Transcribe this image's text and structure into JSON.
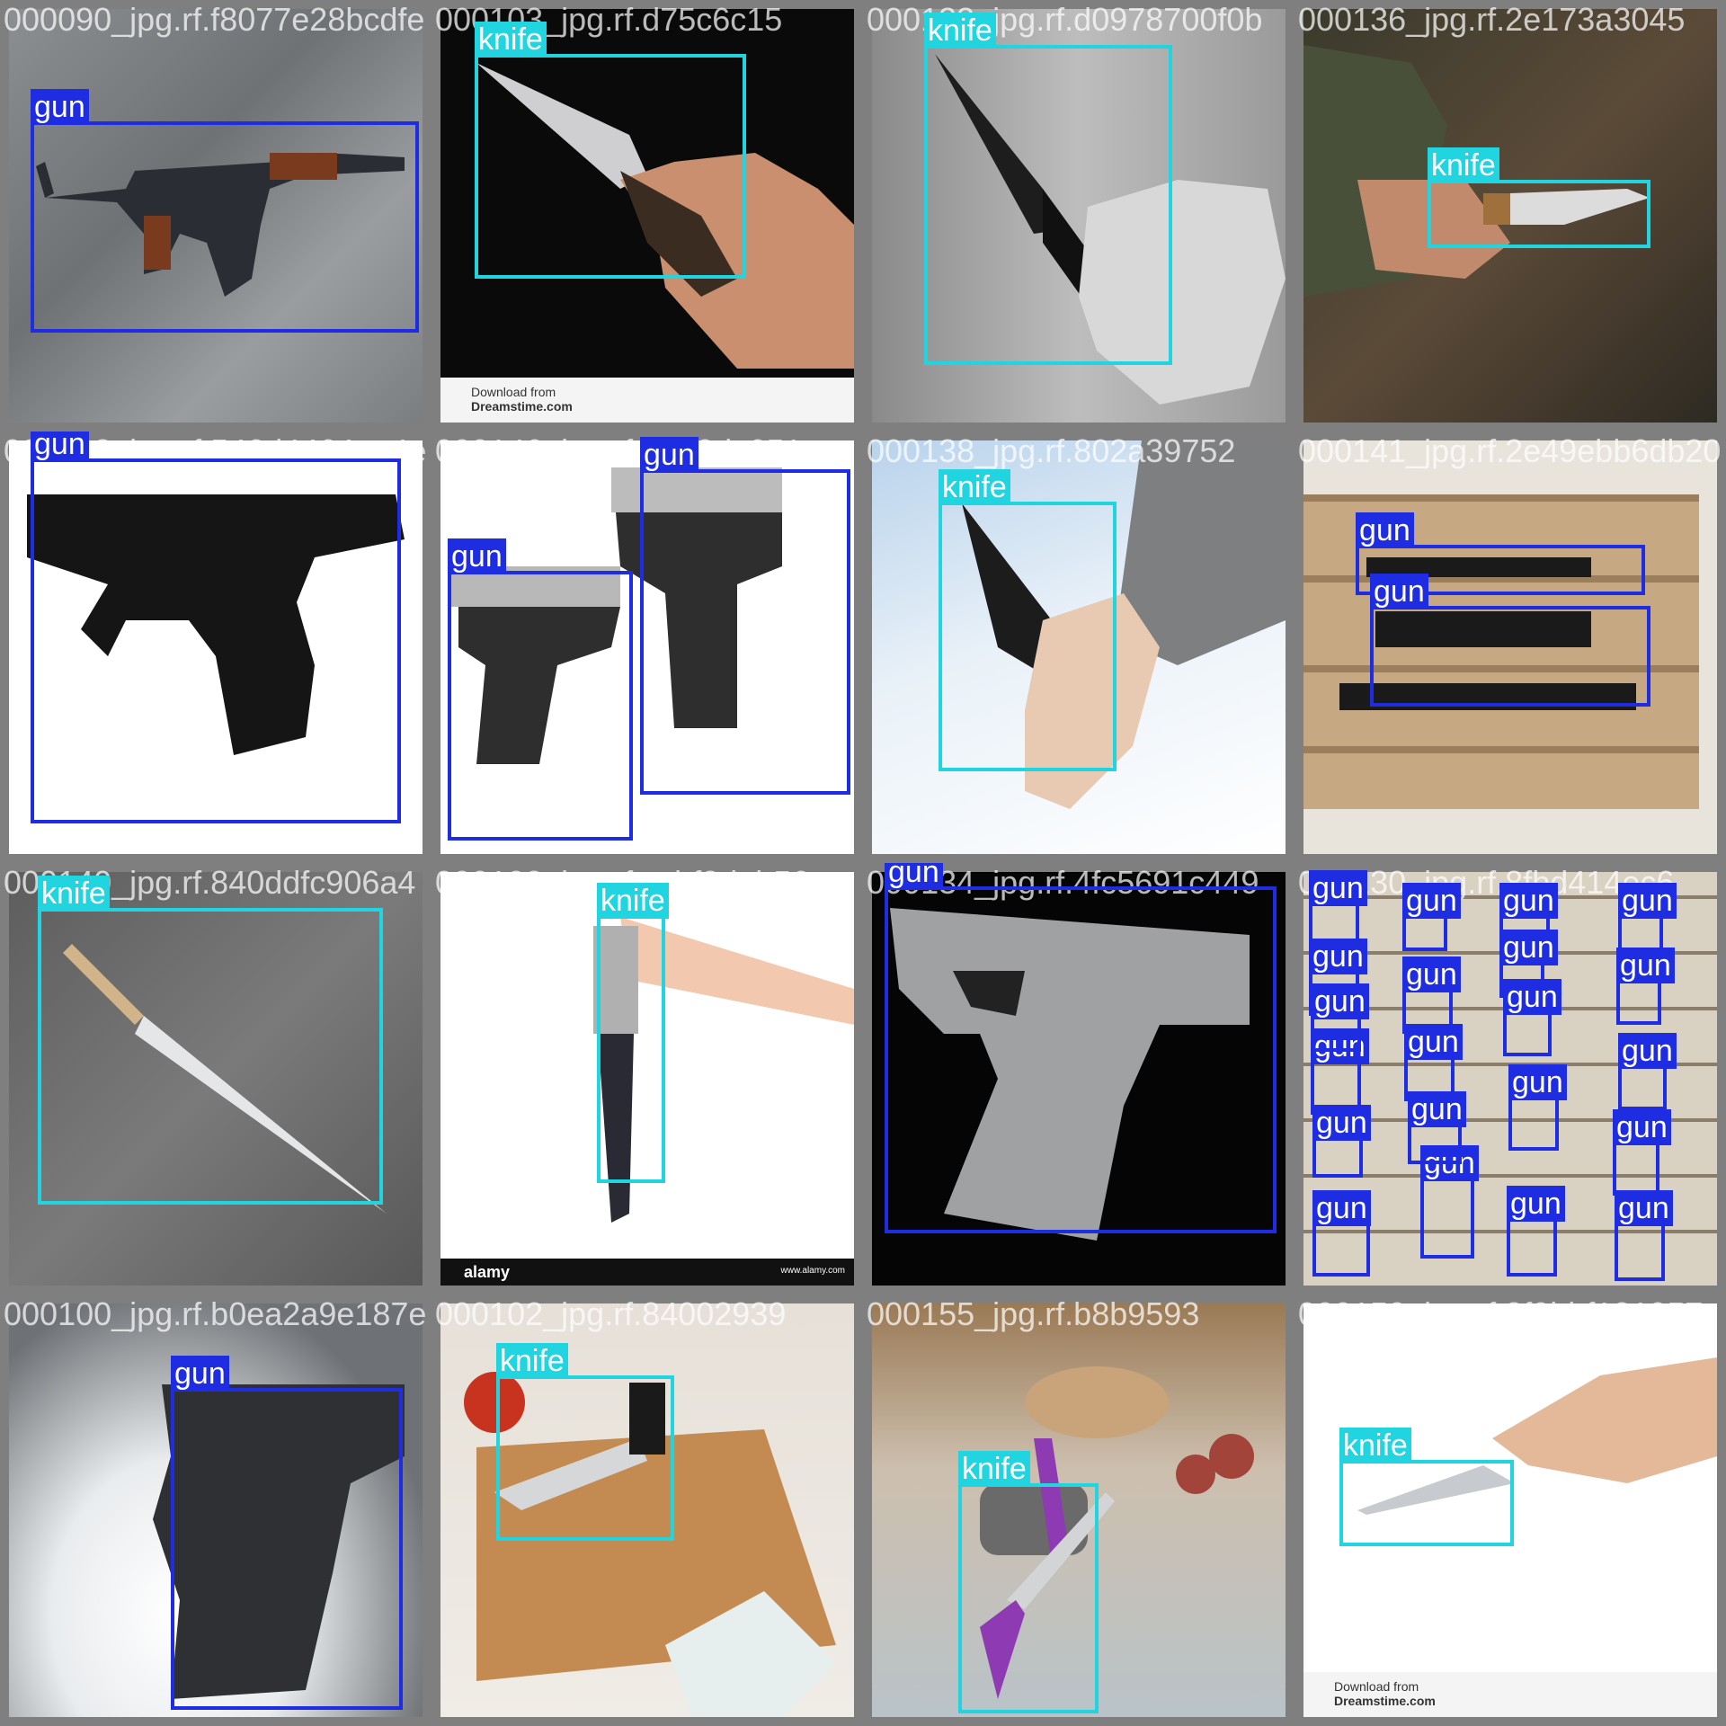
{
  "colors": {
    "gun": "#1f2de2",
    "knife": "#20d4e0",
    "grid_bg": "#7f7f7f"
  },
  "tiles": [
    {
      "filename": "000090_jpg.rf.f8077e28bcdfe",
      "labels": [
        "gun"
      ]
    },
    {
      "filename": "000103_jpg.rf.d75c6c15",
      "labels": [
        "knife"
      ]
    },
    {
      "filename": "000133_jpg.rf.d0978700f0b",
      "labels": [
        "knife"
      ]
    },
    {
      "filename": "000136_jpg.rf.2e173a3045",
      "labels": [
        "knife"
      ]
    },
    {
      "filename": "000092_jpg.rf.546d4464aa4e",
      "labels": [
        "gun"
      ]
    },
    {
      "filename": "000146_jpg.rf.3e40dc651",
      "labels": [
        "gun",
        "gun"
      ]
    },
    {
      "filename": "000138_jpg.rf.802a39752",
      "labels": [
        "knife"
      ]
    },
    {
      "filename": "000141_jpg.rf.2e49ebb6db20",
      "labels": [
        "gun",
        "gun"
      ]
    },
    {
      "filename": "000140_jpg.rf.840ddfc906a4",
      "labels": [
        "knife"
      ]
    },
    {
      "filename": "000108_jpg.rf.ccbf8deb56",
      "labels": [
        "knife"
      ]
    },
    {
      "filename": "000134_jpg.rf.4fc5691c449",
      "labels": [
        "gun"
      ]
    },
    {
      "filename": "000130_jpg.rf.8fbd414ec6",
      "labels": [
        "gun",
        "gun",
        "gun",
        "gun",
        "gun",
        "gun",
        "gun",
        "gun",
        "gun",
        "gun",
        "gun",
        "gun",
        "gun",
        "gun",
        "gun",
        "gun",
        "gun",
        "gun",
        "gun",
        "gun",
        "gun"
      ]
    },
    {
      "filename": "000100_jpg.rf.b0ea2a9e187e",
      "labels": [
        "gun"
      ]
    },
    {
      "filename": "000102_jpg.rf.84002939",
      "labels": [
        "knife"
      ]
    },
    {
      "filename": "000155_jpg.rf.b8b9593",
      "labels": [
        "knife"
      ]
    },
    {
      "filename": "000150_jpg.rf.3f9bbf181957",
      "labels": [
        "knife"
      ]
    }
  ],
  "watermarks": {
    "dreamstime_download": "Download from",
    "dreamstime_name": "Dreamstime.com",
    "alamy": "alamy",
    "alamy_small": "www.alamy.com"
  }
}
